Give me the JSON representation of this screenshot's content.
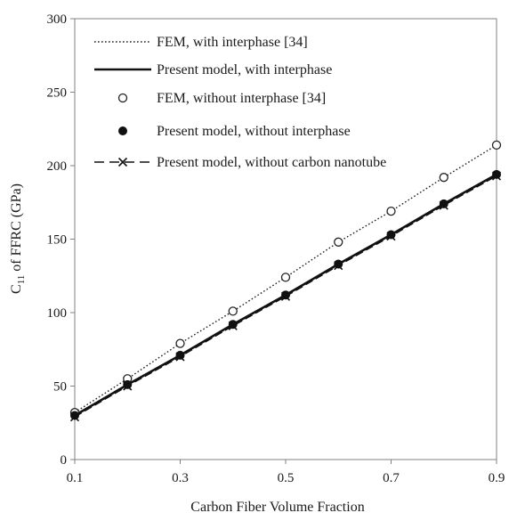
{
  "chart_data": {
    "type": "line",
    "title": "",
    "xlabel": "Carbon Fiber Volume Fraction",
    "ylabel_main": "C",
    "ylabel_sub": "11",
    "ylabel_rest": " of FFRC (GPa)",
    "xlim": [
      0.1,
      0.9
    ],
    "ylim": [
      0,
      300
    ],
    "x_ticks": [
      "0.1",
      "0.3",
      "0.5",
      "0.7",
      "0.9"
    ],
    "y_ticks": [
      "0",
      "50",
      "100",
      "150",
      "200",
      "250",
      "300"
    ],
    "x_tick_values": [
      0.1,
      0.3,
      0.5,
      0.7,
      0.9
    ],
    "y_tick_values": [
      0,
      50,
      100,
      150,
      200,
      250,
      300
    ],
    "grid": false,
    "legend_position": "top-left",
    "series": [
      {
        "name": "FEM, with interphase [34]",
        "style": "dotted-line",
        "x": [
          0.1,
          0.2,
          0.3,
          0.4,
          0.5,
          0.6,
          0.7,
          0.8,
          0.9
        ],
        "y": [
          32,
          55,
          79,
          101,
          124,
          148,
          169,
          192,
          214
        ]
      },
      {
        "name": "Present model, with interphase",
        "style": "solid-line",
        "x": [
          0.1,
          0.2,
          0.3,
          0.4,
          0.5,
          0.6,
          0.7,
          0.8,
          0.9
        ],
        "y": [
          30,
          51,
          71,
          92,
          112,
          133,
          153,
          174,
          194
        ]
      },
      {
        "name": "FEM, without interphase [34]",
        "style": "open-circle",
        "x": [
          0.1,
          0.2,
          0.3,
          0.4,
          0.5,
          0.6,
          0.7,
          0.8,
          0.9
        ],
        "y": [
          32,
          55,
          79,
          101,
          124,
          148,
          169,
          192,
          214
        ]
      },
      {
        "name": "Present model, without interphase",
        "style": "filled-circle",
        "x": [
          0.1,
          0.2,
          0.3,
          0.4,
          0.5,
          0.6,
          0.7,
          0.8,
          0.9
        ],
        "y": [
          30,
          51,
          71,
          92,
          112,
          133,
          153,
          174,
          194
        ]
      },
      {
        "name": "Present model, without carbon nanotube",
        "style": "dash-cross",
        "x": [
          0.1,
          0.2,
          0.3,
          0.4,
          0.5,
          0.6,
          0.7,
          0.8,
          0.9
        ],
        "y": [
          29,
          50,
          70,
          91,
          111,
          132,
          152,
          173,
          193
        ]
      }
    ]
  }
}
